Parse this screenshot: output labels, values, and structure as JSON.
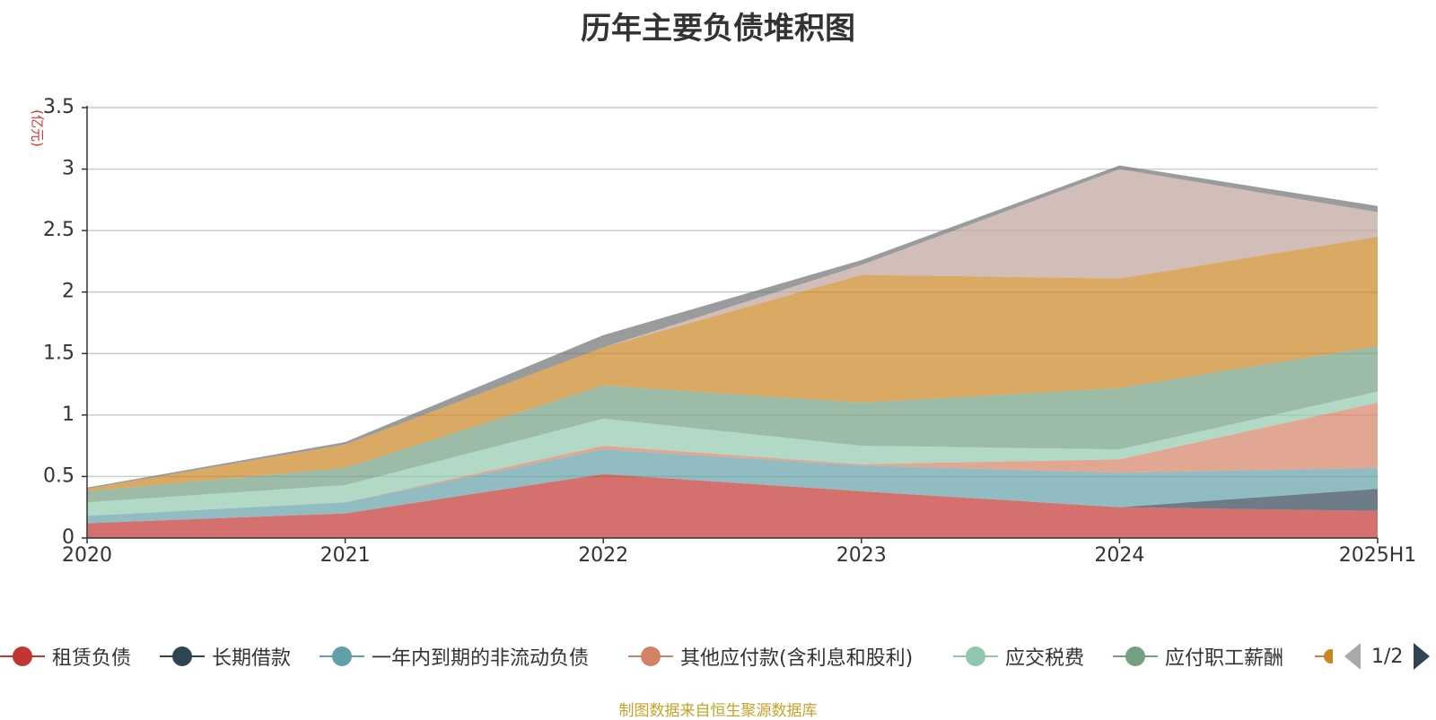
{
  "chart_data": {
    "type": "area",
    "stacked": true,
    "title": "历年主要负债堆积图",
    "ylabel": "(亿元)",
    "categories": [
      "2020",
      "2021",
      "2022",
      "2023",
      "2024",
      "2025H1"
    ],
    "ylim": [
      0,
      3.5
    ],
    "yticks": [
      0,
      0.5,
      1,
      1.5,
      2,
      2.5,
      3,
      3.5
    ],
    "grid": true,
    "series": [
      {
        "name": "租赁负债",
        "color": "#c23531",
        "values": [
          0.12,
          0.2,
          0.52,
          0.38,
          0.25,
          0.22
        ]
      },
      {
        "name": "长期借款",
        "color": "#2f4554",
        "values": [
          0.0,
          0.0,
          0.0,
          0.0,
          0.0,
          0.18
        ]
      },
      {
        "name": "一年内到期的非流动负债",
        "color": "#61a0a8",
        "values": [
          0.06,
          0.09,
          0.2,
          0.21,
          0.28,
          0.17
        ]
      },
      {
        "name": "其他应付款(含利息和股利)",
        "color": "#d48265",
        "values": [
          0.0,
          0.0,
          0.03,
          0.01,
          0.11,
          0.53
        ]
      },
      {
        "name": "应交税费",
        "color": "#91c7ae",
        "values": [
          0.11,
          0.14,
          0.22,
          0.15,
          0.08,
          0.09
        ]
      },
      {
        "name": "应付职工薪酬",
        "color": "#749f83",
        "values": [
          0.09,
          0.14,
          0.27,
          0.35,
          0.5,
          0.37
        ]
      },
      {
        "name": "",
        "color": "#ca8622",
        "values": [
          0.02,
          0.19,
          0.31,
          1.04,
          0.89,
          0.89
        ]
      },
      {
        "name": "",
        "color": "#bda29a",
        "values": [
          0.0,
          0.0,
          0.0,
          0.08,
          0.89,
          0.2
        ]
      },
      {
        "name": "",
        "color": "#6e7074",
        "values": [
          0.01,
          0.02,
          0.1,
          0.04,
          0.03,
          0.05
        ]
      }
    ],
    "legend": {
      "position": "bottom",
      "page": "1/2"
    }
  },
  "footer": "制图数据来自恒生聚源数据库"
}
